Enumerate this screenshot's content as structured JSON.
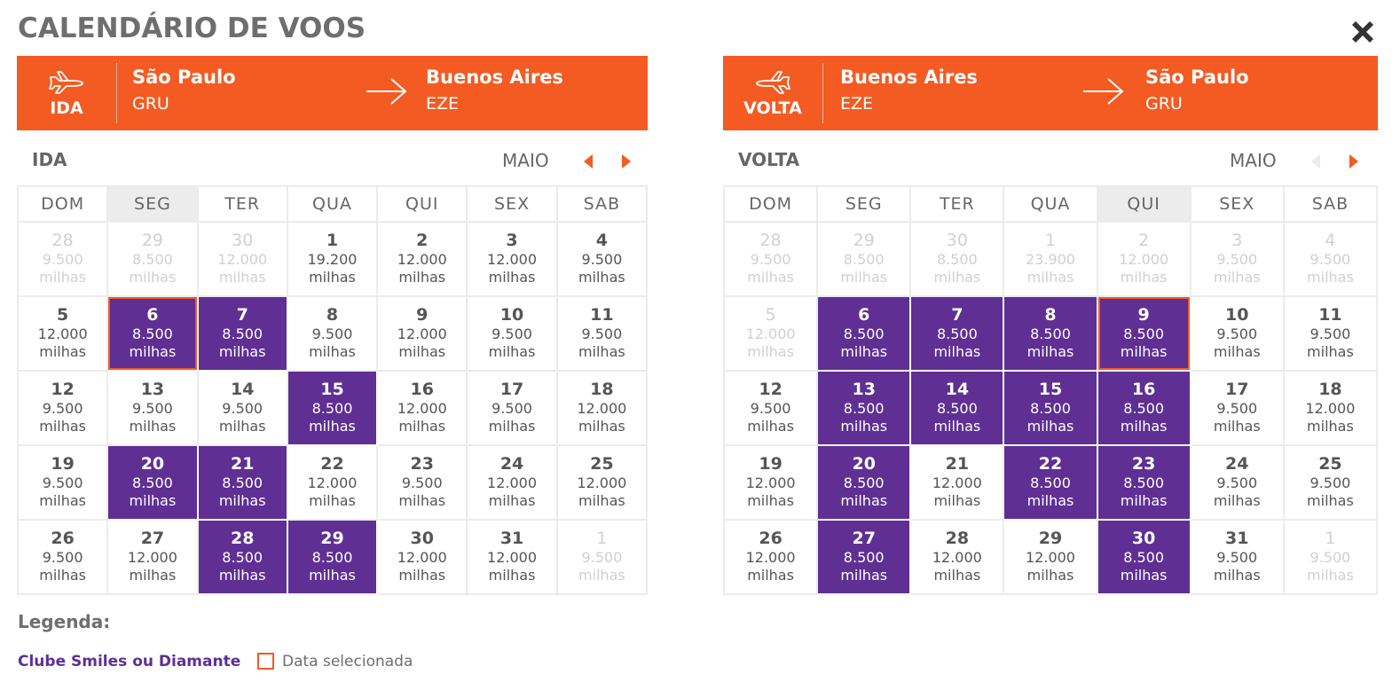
{
  "title": "CALENDÁRIO DE VOOS",
  "colors": {
    "accent": "#f35b22",
    "club": "#5f2f94",
    "muted": "#d0d0d0"
  },
  "weekdays": [
    "DOM",
    "SEG",
    "TER",
    "QUA",
    "QUI",
    "SEX",
    "SAB"
  ],
  "ida": {
    "icon_label": "IDA",
    "origin": {
      "city": "São Paulo",
      "code": "GRU"
    },
    "destination": {
      "city": "Buenos Aires",
      "code": "EZE"
    },
    "direction_label": "IDA",
    "month": "MAIO",
    "highlight_weekday": 1,
    "weeks": [
      [
        {
          "day": "28",
          "price": "9.500",
          "unit": "milhas",
          "state": "muted"
        },
        {
          "day": "29",
          "price": "8.500",
          "unit": "milhas",
          "state": "muted"
        },
        {
          "day": "30",
          "price": "12.000",
          "unit": "milhas",
          "state": "muted"
        },
        {
          "day": "1",
          "price": "19.200",
          "unit": "milhas",
          "state": "normal"
        },
        {
          "day": "2",
          "price": "12.000",
          "unit": "milhas",
          "state": "normal"
        },
        {
          "day": "3",
          "price": "12.000",
          "unit": "milhas",
          "state": "normal"
        },
        {
          "day": "4",
          "price": "9.500",
          "unit": "milhas",
          "state": "normal"
        }
      ],
      [
        {
          "day": "5",
          "price": "12.000",
          "unit": "milhas",
          "state": "normal"
        },
        {
          "day": "6",
          "price": "8.500",
          "unit": "milhas",
          "state": "club-selected"
        },
        {
          "day": "7",
          "price": "8.500",
          "unit": "milhas",
          "state": "club"
        },
        {
          "day": "8",
          "price": "9.500",
          "unit": "milhas",
          "state": "normal"
        },
        {
          "day": "9",
          "price": "12.000",
          "unit": "milhas",
          "state": "normal"
        },
        {
          "day": "10",
          "price": "9.500",
          "unit": "milhas",
          "state": "normal"
        },
        {
          "day": "11",
          "price": "9.500",
          "unit": "milhas",
          "state": "normal"
        }
      ],
      [
        {
          "day": "12",
          "price": "9.500",
          "unit": "milhas",
          "state": "normal"
        },
        {
          "day": "13",
          "price": "9.500",
          "unit": "milhas",
          "state": "normal"
        },
        {
          "day": "14",
          "price": "9.500",
          "unit": "milhas",
          "state": "normal"
        },
        {
          "day": "15",
          "price": "8.500",
          "unit": "milhas",
          "state": "club"
        },
        {
          "day": "16",
          "price": "12.000",
          "unit": "milhas",
          "state": "normal"
        },
        {
          "day": "17",
          "price": "9.500",
          "unit": "milhas",
          "state": "normal"
        },
        {
          "day": "18",
          "price": "12.000",
          "unit": "milhas",
          "state": "normal"
        }
      ],
      [
        {
          "day": "19",
          "price": "9.500",
          "unit": "milhas",
          "state": "normal"
        },
        {
          "day": "20",
          "price": "8.500",
          "unit": "milhas",
          "state": "club"
        },
        {
          "day": "21",
          "price": "8.500",
          "unit": "milhas",
          "state": "club"
        },
        {
          "day": "22",
          "price": "12.000",
          "unit": "milhas",
          "state": "normal"
        },
        {
          "day": "23",
          "price": "9.500",
          "unit": "milhas",
          "state": "normal"
        },
        {
          "day": "24",
          "price": "12.000",
          "unit": "milhas",
          "state": "normal"
        },
        {
          "day": "25",
          "price": "12.000",
          "unit": "milhas",
          "state": "normal"
        }
      ],
      [
        {
          "day": "26",
          "price": "9.500",
          "unit": "milhas",
          "state": "normal"
        },
        {
          "day": "27",
          "price": "12.000",
          "unit": "milhas",
          "state": "normal"
        },
        {
          "day": "28",
          "price": "8.500",
          "unit": "milhas",
          "state": "club"
        },
        {
          "day": "29",
          "price": "8.500",
          "unit": "milhas",
          "state": "club"
        },
        {
          "day": "30",
          "price": "12.000",
          "unit": "milhas",
          "state": "normal"
        },
        {
          "day": "31",
          "price": "12.000",
          "unit": "milhas",
          "state": "normal"
        },
        {
          "day": "1",
          "price": "9.500",
          "unit": "milhas",
          "state": "muted"
        }
      ]
    ]
  },
  "volta": {
    "icon_label": "VOLTA",
    "origin": {
      "city": "Buenos Aires",
      "code": "EZE"
    },
    "destination": {
      "city": "São Paulo",
      "code": "GRU"
    },
    "direction_label": "VOLTA",
    "month": "MAIO",
    "highlight_weekday": 4,
    "weeks": [
      [
        {
          "day": "28",
          "price": "9.500",
          "unit": "milhas",
          "state": "muted"
        },
        {
          "day": "29",
          "price": "8.500",
          "unit": "milhas",
          "state": "muted"
        },
        {
          "day": "30",
          "price": "8.500",
          "unit": "milhas",
          "state": "muted"
        },
        {
          "day": "1",
          "price": "23.900",
          "unit": "milhas",
          "state": "muted"
        },
        {
          "day": "2",
          "price": "12.000",
          "unit": "milhas",
          "state": "muted"
        },
        {
          "day": "3",
          "price": "9.500",
          "unit": "milhas",
          "state": "muted"
        },
        {
          "day": "4",
          "price": "9.500",
          "unit": "milhas",
          "state": "muted"
        }
      ],
      [
        {
          "day": "5",
          "price": "12.000",
          "unit": "milhas",
          "state": "muted"
        },
        {
          "day": "6",
          "price": "8.500",
          "unit": "milhas",
          "state": "club"
        },
        {
          "day": "7",
          "price": "8.500",
          "unit": "milhas",
          "state": "club"
        },
        {
          "day": "8",
          "price": "8.500",
          "unit": "milhas",
          "state": "club"
        },
        {
          "day": "9",
          "price": "8.500",
          "unit": "milhas",
          "state": "club-selected"
        },
        {
          "day": "10",
          "price": "9.500",
          "unit": "milhas",
          "state": "normal"
        },
        {
          "day": "11",
          "price": "9.500",
          "unit": "milhas",
          "state": "normal"
        }
      ],
      [
        {
          "day": "12",
          "price": "9.500",
          "unit": "milhas",
          "state": "normal"
        },
        {
          "day": "13",
          "price": "8.500",
          "unit": "milhas",
          "state": "club"
        },
        {
          "day": "14",
          "price": "8.500",
          "unit": "milhas",
          "state": "club"
        },
        {
          "day": "15",
          "price": "8.500",
          "unit": "milhas",
          "state": "club"
        },
        {
          "day": "16",
          "price": "8.500",
          "unit": "milhas",
          "state": "club"
        },
        {
          "day": "17",
          "price": "9.500",
          "unit": "milhas",
          "state": "normal"
        },
        {
          "day": "18",
          "price": "12.000",
          "unit": "milhas",
          "state": "normal"
        }
      ],
      [
        {
          "day": "19",
          "price": "12.000",
          "unit": "milhas",
          "state": "normal"
        },
        {
          "day": "20",
          "price": "8.500",
          "unit": "milhas",
          "state": "club"
        },
        {
          "day": "21",
          "price": "12.000",
          "unit": "milhas",
          "state": "normal"
        },
        {
          "day": "22",
          "price": "8.500",
          "unit": "milhas",
          "state": "club"
        },
        {
          "day": "23",
          "price": "8.500",
          "unit": "milhas",
          "state": "club"
        },
        {
          "day": "24",
          "price": "9.500",
          "unit": "milhas",
          "state": "normal"
        },
        {
          "day": "25",
          "price": "9.500",
          "unit": "milhas",
          "state": "normal"
        }
      ],
      [
        {
          "day": "26",
          "price": "12.000",
          "unit": "milhas",
          "state": "normal"
        },
        {
          "day": "27",
          "price": "8.500",
          "unit": "milhas",
          "state": "club"
        },
        {
          "day": "28",
          "price": "12.000",
          "unit": "milhas",
          "state": "normal"
        },
        {
          "day": "29",
          "price": "12.000",
          "unit": "milhas",
          "state": "normal"
        },
        {
          "day": "30",
          "price": "8.500",
          "unit": "milhas",
          "state": "club"
        },
        {
          "day": "31",
          "price": "9.500",
          "unit": "milhas",
          "state": "normal"
        },
        {
          "day": "1",
          "price": "9.500",
          "unit": "milhas",
          "state": "muted"
        }
      ]
    ]
  },
  "legend": {
    "title": "Legenda:",
    "club_label": "Clube Smiles ou Diamante",
    "selected_label": "Data selecionada"
  }
}
